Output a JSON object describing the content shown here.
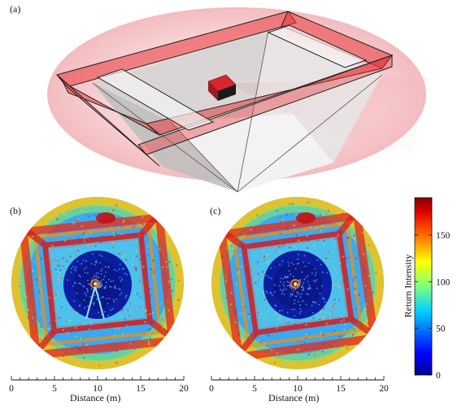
{
  "panels": {
    "a": {
      "label": "(a)"
    },
    "b": {
      "label": "(b)",
      "xlabel": "Distance (m)"
    },
    "c": {
      "label": "(c)",
      "xlabel": "Distance (m)"
    }
  },
  "colorbar": {
    "title": "Return Intensity",
    "ticks": [
      0,
      50,
      100,
      150
    ],
    "range": [
      0,
      190
    ]
  },
  "axis_ticks": [
    "0",
    "5",
    "10",
    "15",
    "20"
  ],
  "colors": {
    "frame_red": "#e8383d",
    "halo": "#f6c9cc",
    "grey_fill": "#c8c8c8"
  },
  "chart_data": [
    {
      "type": "heatmap",
      "panel": "(b)",
      "xlabel": "Distance (m)",
      "xlim": [
        0,
        20
      ],
      "xticks": [
        0,
        5,
        10,
        15,
        20
      ],
      "colorbar_label": "Return Intensity",
      "clim": [
        0,
        190
      ]
    },
    {
      "type": "heatmap",
      "panel": "(c)",
      "xlabel": "Distance (m)",
      "xlim": [
        0,
        20
      ],
      "xticks": [
        0,
        5,
        10,
        15,
        20
      ],
      "colorbar_label": "Return Intensity",
      "clim": [
        0,
        190
      ]
    }
  ]
}
